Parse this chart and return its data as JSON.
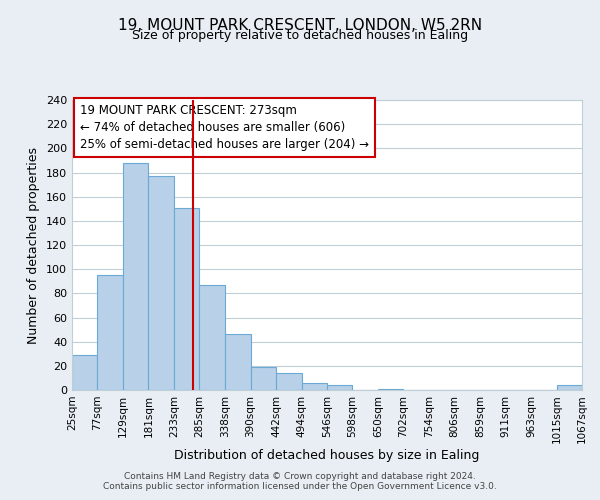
{
  "title": "19, MOUNT PARK CRESCENT, LONDON, W5 2RN",
  "subtitle": "Size of property relative to detached houses in Ealing",
  "xlabel": "Distribution of detached houses by size in Ealing",
  "ylabel": "Number of detached properties",
  "bar_edges": [
    25,
    77,
    129,
    181,
    233,
    285,
    338,
    390,
    442,
    494,
    546,
    598,
    650,
    702,
    754,
    806,
    859,
    911,
    963,
    1015,
    1067
  ],
  "bar_heights": [
    29,
    95,
    188,
    177,
    151,
    87,
    46,
    19,
    14,
    6,
    4,
    0,
    1,
    0,
    0,
    0,
    0,
    0,
    0,
    4
  ],
  "bar_color": "#b8d0e8",
  "bar_edge_color": "#6aaad4",
  "vline_x": 273,
  "vline_color": "#cc0000",
  "annotation_line1": "19 MOUNT PARK CRESCENT: 273sqm",
  "annotation_line2": "← 74% of detached houses are smaller (606)",
  "annotation_line3": "25% of semi-detached houses are larger (204) →",
  "ylim": [
    0,
    240
  ],
  "yticks": [
    0,
    20,
    40,
    60,
    80,
    100,
    120,
    140,
    160,
    180,
    200,
    220,
    240
  ],
  "tick_labels": [
    "25sqm",
    "77sqm",
    "129sqm",
    "181sqm",
    "233sqm",
    "285sqm",
    "338sqm",
    "390sqm",
    "442sqm",
    "494sqm",
    "546sqm",
    "598sqm",
    "650sqm",
    "702sqm",
    "754sqm",
    "806sqm",
    "859sqm",
    "911sqm",
    "963sqm",
    "1015sqm",
    "1067sqm"
  ],
  "footer1": "Contains HM Land Registry data © Crown copyright and database right 2024.",
  "footer2": "Contains public sector information licensed under the Open Government Licence v3.0.",
  "bg_color": "#e8eef4",
  "plot_bg_color": "#ffffff",
  "grid_color": "#c0ced8"
}
